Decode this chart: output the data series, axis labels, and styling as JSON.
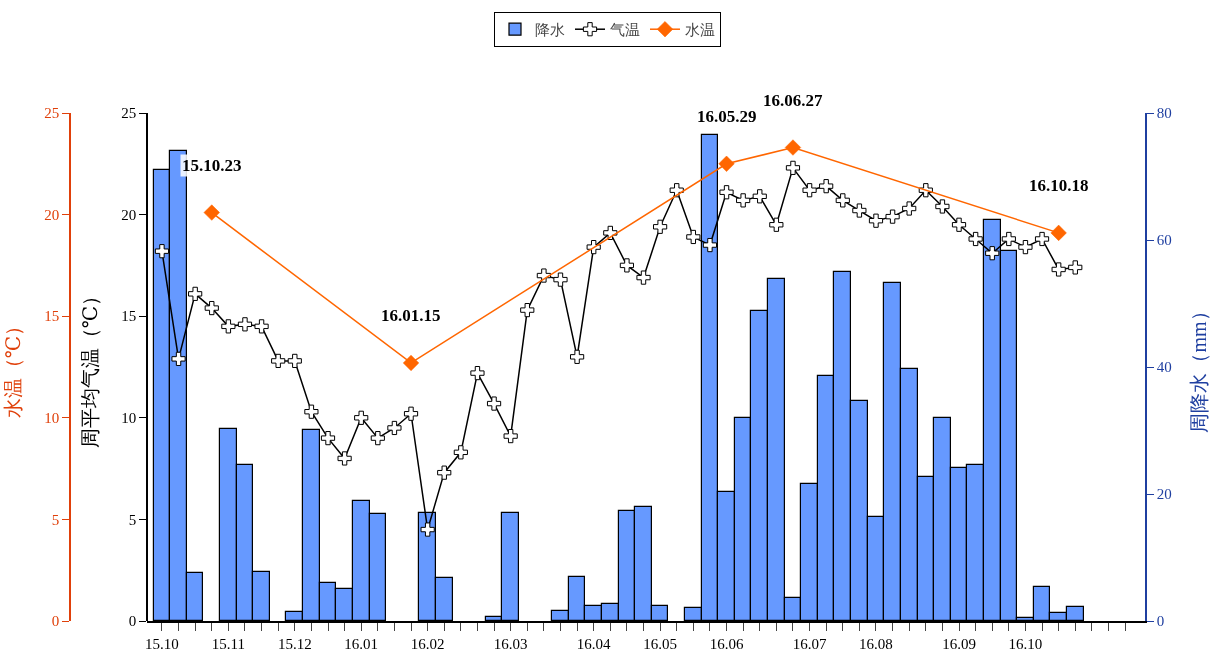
{
  "chart_data": {
    "type": "bar",
    "categories": [
      "15.10",
      null,
      null,
      null,
      "15.11",
      null,
      null,
      null,
      "15.12",
      null,
      null,
      null,
      "16.01",
      null,
      null,
      null,
      "16.02",
      null,
      null,
      null,
      null,
      "16.03",
      null,
      null,
      null,
      null,
      "16.04",
      null,
      null,
      null,
      "16.05",
      null,
      null,
      null,
      "16.06",
      null,
      null,
      null,
      null,
      "16.07",
      null,
      null,
      null,
      "16.08",
      null,
      null,
      null,
      null,
      "16.09",
      null,
      null,
      null,
      "16.10",
      null,
      null,
      null,
      null,
      null,
      null
    ],
    "series": [
      {
        "name": "降水",
        "axis": "y2",
        "color": "#6699ff",
        "values": [
          71,
          74,
          7.6,
          0,
          30.3,
          24.5,
          7.7,
          0,
          1.4,
          30.1,
          6.0,
          5.0,
          18.9,
          16.8,
          0,
          0,
          17.0,
          6.7,
          0,
          0,
          0.6,
          17,
          0,
          0,
          1.5,
          7.0,
          2.4,
          2.6,
          17.4,
          17.9,
          2.3,
          0,
          2.1,
          76.6,
          20.3,
          32.0,
          48.8,
          53.8,
          3.6,
          21.5,
          38.6,
          55.0,
          34.7,
          16.4,
          53.3,
          39.7,
          22.6,
          32.0,
          24.1,
          24.6,
          63.2,
          58.3,
          0.4,
          5.4,
          1.2,
          2.2,
          null,
          null,
          null
        ]
      },
      {
        "name": "气温",
        "type": "line",
        "axis": "y",
        "color": "#000000",
        "marker": "cross",
        "values": [
          18.2,
          12.9,
          16.1,
          15.4,
          14.5,
          14.6,
          14.5,
          12.8,
          12.8,
          10.3,
          9.0,
          8.0,
          10.0,
          9.0,
          9.5,
          10.2,
          4.5,
          7.3,
          8.3,
          12.2,
          10.7,
          9.1,
          15.3,
          17.0,
          16.8,
          13.0,
          18.4,
          19.1,
          17.5,
          16.9,
          19.4,
          21.2,
          18.9,
          18.5,
          21.1,
          20.7,
          20.9,
          19.5,
          22.3,
          21.2,
          21.4,
          20.7,
          20.2,
          19.7,
          19.9,
          20.3,
          21.2,
          20.4,
          19.5,
          18.8,
          18.1,
          18.8,
          18.4,
          18.8,
          17.3,
          17.4,
          null,
          null,
          null
        ]
      },
      {
        "name": "水温",
        "type": "line",
        "axis": "y3",
        "color": "#ff6600",
        "marker": "diamond",
        "values": [
          null,
          null,
          null,
          20.1,
          null,
          null,
          null,
          null,
          null,
          null,
          null,
          null,
          null,
          null,
          null,
          12.7,
          null,
          null,
          null,
          null,
          null,
          null,
          null,
          null,
          null,
          null,
          null,
          null,
          null,
          null,
          null,
          null,
          null,
          null,
          22.5,
          null,
          null,
          null,
          23.3,
          null,
          null,
          null,
          null,
          null,
          null,
          null,
          null,
          null,
          null,
          null,
          null,
          null,
          null,
          null,
          19.1,
          null,
          null,
          null,
          null
        ]
      }
    ],
    "ylabel": "周平均气温（℃）",
    "ylim": [
      0,
      25
    ],
    "yticks": [
      0,
      5,
      10,
      15,
      20,
      25
    ],
    "y2label": "周降水（mm）",
    "y2lim": [
      0,
      80
    ],
    "y2ticks": [
      0,
      20,
      40,
      60,
      80
    ],
    "y3label": "水温（℃）",
    "y3lim": [
      0,
      25
    ],
    "y3ticks": [
      0,
      5,
      10,
      15,
      20,
      25
    ],
    "annotations": [
      "15.10.23",
      "16.01.15",
      "16.05.29",
      "16.06.27",
      "16.10.18"
    ],
    "legend": "top",
    "grid": false
  }
}
